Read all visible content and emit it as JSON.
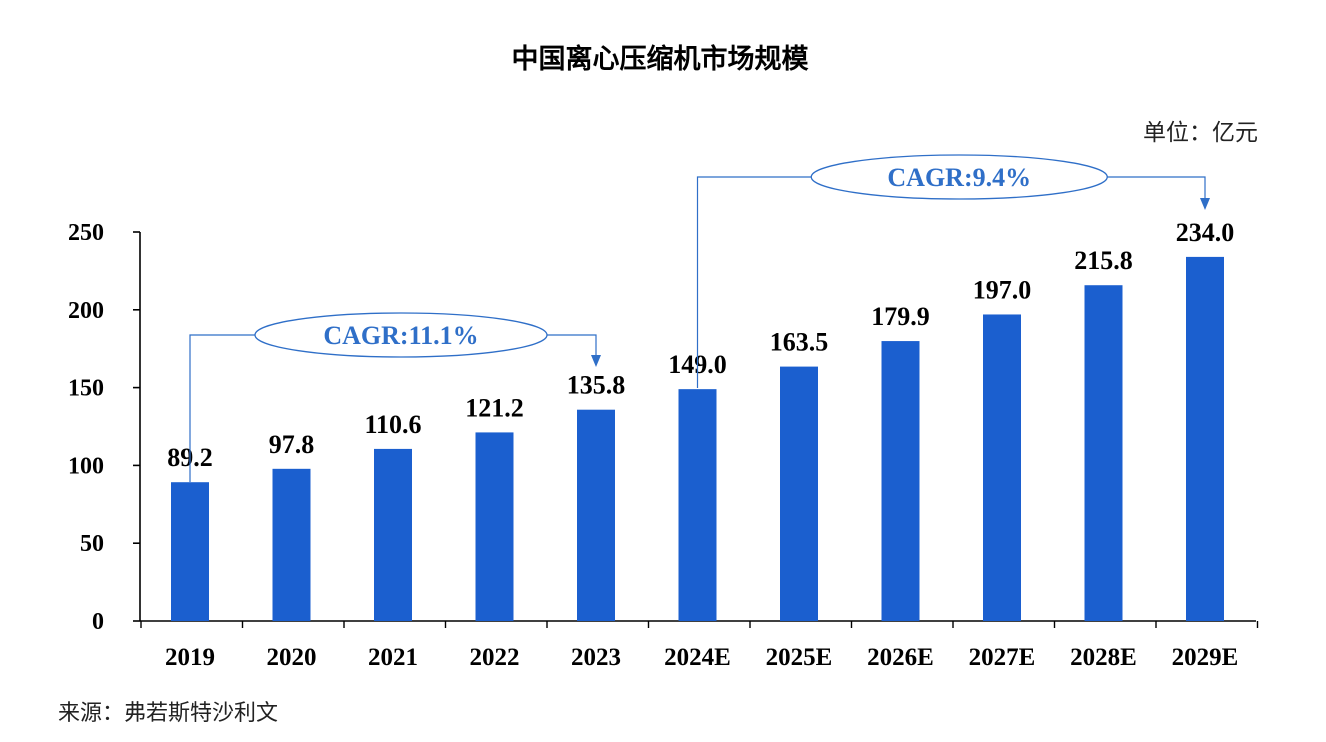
{
  "chart_data": {
    "type": "bar",
    "title": "中国离心压缩机市场规模",
    "unit": "单位：亿元",
    "source": "来源：弗若斯特沙利文",
    "categories": [
      "2019",
      "2020",
      "2021",
      "2022",
      "2023",
      "2024E",
      "2025E",
      "2026E",
      "2027E",
      "2028E",
      "2029E"
    ],
    "values": [
      89.2,
      97.8,
      110.6,
      121.2,
      135.8,
      149.0,
      163.5,
      179.9,
      197.0,
      215.8,
      234.0
    ],
    "value_labels": [
      "89.2",
      "97.8",
      "110.6",
      "121.2",
      "135.8",
      "149.0",
      "163.5",
      "179.9",
      "197.0",
      "215.8",
      "234.0"
    ],
    "ylim": [
      0,
      250
    ],
    "yticks": [
      0,
      50,
      100,
      150,
      200,
      250
    ],
    "grid": false,
    "annotations": [
      {
        "text": "CAGR:11.1%",
        "from": "2019",
        "to": "2023"
      },
      {
        "text": "CAGR:9.4%",
        "from": "2024E",
        "to": "2029E"
      }
    ],
    "colors": {
      "bar": "#1b5fcf",
      "annotation": "#2f6fc8",
      "axis": "#000000"
    }
  }
}
